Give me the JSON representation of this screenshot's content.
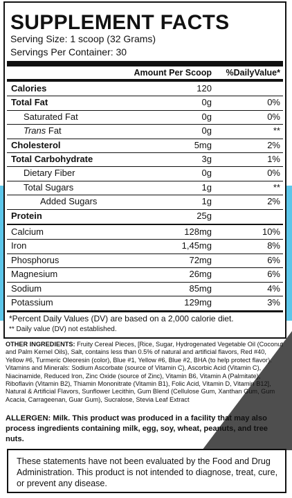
{
  "facts": {
    "title": "SUPPLEMENT FACTS",
    "serving_size": "Serving Size: 1 scoop (32 Grams)",
    "servings": "Servings Per Container: 30",
    "header_amount": "Amount Per Scoop",
    "header_dv": "%DailyValue*",
    "nutrients": [
      {
        "name": "Calories",
        "amount": "120",
        "bold": true,
        "indent": 0
      },
      {
        "name": "Total Fat",
        "amount": "0g",
        "dv": "0%",
        "bold": true,
        "indent": 0
      },
      {
        "name": "Saturated Fat",
        "amount": "0g",
        "dv": "0%",
        "indent": 1
      },
      {
        "name_italic": "Trans",
        "name": "Fat",
        "amount": "0g",
        "dv": "**",
        "indent": 1
      },
      {
        "name": "Cholesterol",
        "amount": "5mg",
        "dv": "2%",
        "bold": true,
        "indent": 0
      },
      {
        "name": "Total Carbohydrate",
        "amount": "3g",
        "dv": "1%",
        "bold": true,
        "indent": 0
      },
      {
        "name": "Dietary Fiber",
        "amount": "0g",
        "dv": "0%",
        "indent": 1
      },
      {
        "name": "Total Sugars",
        "amount": "1g",
        "dv": "**",
        "indent": 1
      },
      {
        "name": "Added Sugars",
        "amount": "1g",
        "dv": "2%",
        "indent": 2
      },
      {
        "name": "Protein",
        "amount": "25g",
        "bold": true,
        "indent": 0
      }
    ],
    "minerals": [
      {
        "name": "Calcium",
        "amount": "128mg",
        "dv": "10%",
        "indent": 0
      },
      {
        "name": "Iron",
        "amount": "1,45mg",
        "dv": "8%",
        "indent": 0
      },
      {
        "name": "Phosphorus",
        "amount": "72mg",
        "dv": "6%",
        "indent": 0
      },
      {
        "name": "Magnesium",
        "amount": "26mg",
        "dv": "6%",
        "indent": 0
      },
      {
        "name": "Sodium",
        "amount": "85mg",
        "dv": "4%",
        "indent": 0
      },
      {
        "name": "Potassium",
        "amount": "129mg",
        "dv": "3%",
        "indent": 0
      }
    ],
    "footnote_1": "*Percent Daily Values (DV) are based on a 2,000 calorie diet.",
    "footnote_2": "** Daily value (DV) not established."
  },
  "ingredients": {
    "label": "OTHER INGREDIENTS:",
    "text": "Fruity Cereal Pieces, [Rice, Sugar, Hydrogenated Vegetable Oil (Coconut and Palm Kernel Oils), Salt, contains less than 0.5% of natural and artificial flavors, Red #40, Yellow #6, Turmeric Oleoresin (color), Blue #1, Yellow #6, Blue #2, BHA (to help protect flavor). Vitamins and Minerals: Sodium Ascorbate (source of Vitamin C), Ascorbic Acid (Vitamin C), Niacinamide, Reduced Iron, Zinc Oxide (source of Zinc), Vitamin B6, Vitamin A (Palmitate), Riboflavin (Vitamin B2), Thiamin Mononitrate (Vitamin B1), Folic Acid, Vitamin D, Vitamin B12], Natural & Artificial Flavors, Sunflower Lecithin, Gum Blend (Cellulose Gum, Xanthan Gum, Gum Acacia, Carrageenan, Guar Gum), Sucralose, Stevia Leaf Extract"
  },
  "allergen": "ALLERGEN: Milk. This product was produced in a facility that may also process ingredients containing milk, egg, soy, wheat, peanuts, and tree nuts.",
  "disclaimer": "These statements have not been evaluated by the Food and Drug Administration. This product is not intended to diagnose, treat, cure, or prevent any disease."
}
